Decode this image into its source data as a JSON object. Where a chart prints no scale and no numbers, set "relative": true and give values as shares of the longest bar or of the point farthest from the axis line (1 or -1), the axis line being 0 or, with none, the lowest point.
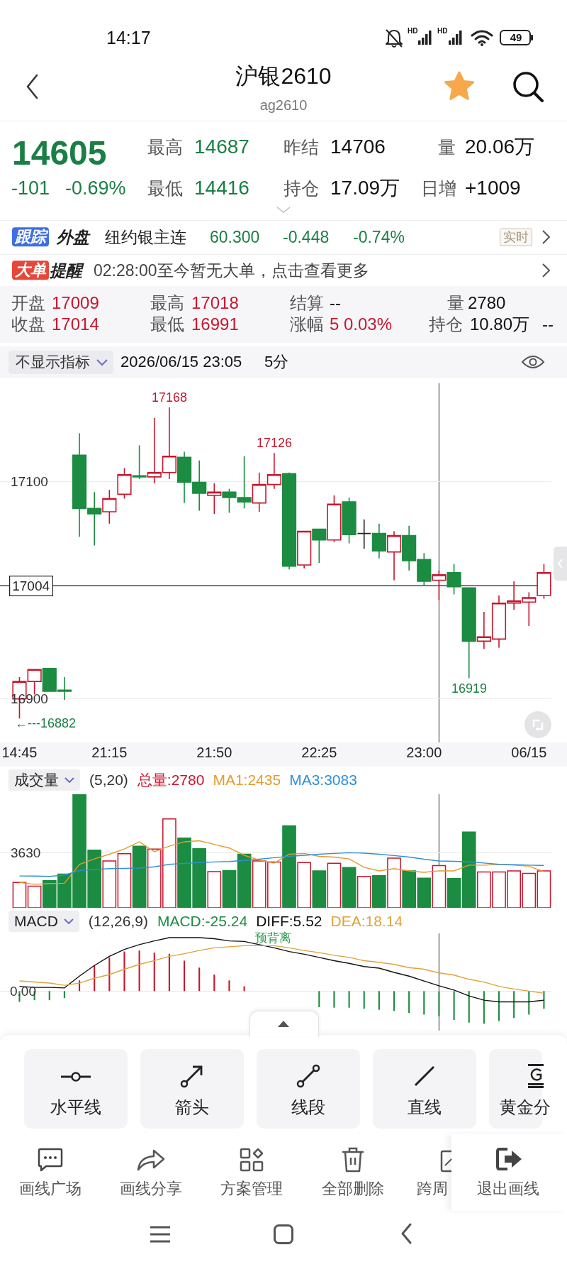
{
  "chart_data": [
    {
      "type": "other",
      "annotations": [
        "14:17",
        "HD",
        "HD",
        "49",
        "沪银2610",
        "ag2610",
        "14605",
        "-101",
        "-0.69%",
        "最高",
        "14687",
        "最低",
        "14416",
        "昨结",
        "14706",
        "持仓",
        "17.09万",
        "量",
        "20.06万",
        "日增",
        "+1009",
        "跟踪",
        "外盘",
        "纽约银主连",
        "60.300",
        "-0.448",
        "-0.74%",
        "实时",
        "大单",
        "提醒",
        "02:28:00至今暂无大单，点击查看更多",
        "开盘",
        "17009",
        "最高",
        "17018",
        "结算",
        "--",
        "量",
        "2780",
        "收盘",
        "17014",
        "最低",
        "16991",
        "涨幅",
        "5",
        "0.03%",
        "持仓",
        "10.80万",
        "--",
        "不显示指标",
        "2026/06/15 23:05",
        "5分"
      ]
    },
    {
      "type": "candlestick",
      "categories": [
        "14:45",
        null,
        null,
        null,
        null,
        null,
        "21:15",
        null,
        null,
        null,
        null,
        null,
        null,
        "21:50",
        null,
        null,
        null,
        null,
        null,
        null,
        "22:25",
        null,
        null,
        null,
        null,
        null,
        null,
        "23:00",
        null,
        null,
        null,
        null,
        null,
        null,
        "06/15",
        null
      ],
      "ohlc": [
        [
          16900,
          16920,
          16882,
          16916
        ],
        [
          16916,
          16927,
          16904,
          16927
        ],
        [
          16928,
          16928,
          16907,
          16907
        ],
        [
          16908,
          16920,
          16899,
          16907
        ],
        [
          17124,
          17144,
          17049,
          17075
        ],
        [
          17075,
          17090,
          17041,
          17070
        ],
        [
          17072,
          17092,
          17061,
          17084
        ],
        [
          17088,
          17112,
          17084,
          17106
        ],
        [
          17105,
          17133,
          17102,
          17104
        ],
        [
          17104,
          17158,
          17098,
          17108
        ],
        [
          17108,
          17168,
          17102,
          17123
        ],
        [
          17122,
          17127,
          17080,
          17099
        ],
        [
          17099,
          17119,
          17073,
          17089
        ],
        [
          17087,
          17098,
          17070,
          17090
        ],
        [
          17090,
          17093,
          17071,
          17085
        ],
        [
          17085,
          17123,
          17075,
          17081
        ],
        [
          17080,
          17108,
          17072,
          17097
        ],
        [
          17097,
          17126,
          17093,
          17106
        ],
        [
          17107,
          17108,
          17019,
          17022
        ],
        [
          17023,
          17054,
          17020,
          17054
        ],
        [
          17056,
          17056,
          17025,
          17046
        ],
        [
          17046,
          17087,
          17044,
          17079
        ],
        [
          17081,
          17085,
          17043,
          17051
        ],
        [
          17052,
          17065,
          17038,
          17052
        ],
        [
          17052,
          17061,
          17029,
          17036
        ],
        [
          17035,
          17054,
          17009,
          17050
        ],
        [
          17050,
          17059,
          17018,
          17027
        ],
        [
          17028,
          17034,
          17004,
          17008
        ],
        [
          17009,
          17018,
          16991,
          17014
        ],
        [
          17016,
          17024,
          16996,
          17003
        ],
        [
          17002,
          17002,
          16919,
          16953
        ],
        [
          16953,
          16980,
          16946,
          16957
        ],
        [
          16955,
          16995,
          16947,
          16988
        ],
        [
          16988,
          17008,
          16982,
          16990
        ],
        [
          16989,
          16998,
          16967,
          16993
        ],
        [
          16995,
          17024,
          16992,
          17016
        ]
      ],
      "colors": [
        "#c8162e",
        "#c8162e",
        "#1b8c41",
        "#1b8c41",
        "#1b8c41",
        "#1b8c41",
        "#c8162e",
        "#c8162e",
        "#1b8c41",
        "#c8162e",
        "#c8162e",
        "#1b8c41",
        "#1b8c41",
        "#c8162e",
        "#1b8c41",
        "#1b8c41",
        "#c8162e",
        "#c8162e",
        "#1b8c41",
        "#c8162e",
        "#1b8c41",
        "#c8162e",
        "#1b8c41",
        "#222222",
        "#1b8c41",
        "#c8162e",
        "#1b8c41",
        "#1b8c41",
        "#c8162e",
        "#1b8c41",
        "#1b8c41",
        "#c8162e",
        "#c8162e",
        "#c8162e",
        "#c8162e",
        "#c8162e"
      ],
      "ylim": [
        16860,
        17190
      ],
      "yticks": [
        16900,
        17100
      ],
      "grid": "y",
      "ref_lines": [
        {
          "axis": "y",
          "value": 17004,
          "label": "17004"
        }
      ],
      "annotations": [
        {
          "text": "17168",
          "y": 17168
        },
        {
          "text": "17126",
          "y": 17126
        },
        {
          "text": "16919",
          "y": 16919
        },
        "←---16882"
      ]
    },
    {
      "type": "bar",
      "title": "成交量",
      "subtitle": "(5,20)",
      "categories": [
        null,
        null,
        null,
        null,
        null,
        null,
        null,
        null,
        null,
        null,
        null,
        null,
        null,
        null,
        null,
        null,
        null,
        null,
        null,
        null,
        null,
        null,
        null,
        null,
        null,
        null,
        null,
        null,
        null,
        null,
        null,
        null,
        null,
        null,
        null,
        null
      ],
      "series": [
        {
          "name": "总量:2780",
          "color": "#c8162e",
          "colors": [
            "#c8162e",
            "#c8162e",
            "#1b8c41",
            "#1b8c41",
            "#1b8c41",
            "#1b8c41",
            "#c8162e",
            "#c8162e",
            "#1b8c41",
            "#c8162e",
            "#c8162e",
            "#1b8c41",
            "#1b8c41",
            "#c8162e",
            "#1b8c41",
            "#1b8c41",
            "#c8162e",
            "#c8162e",
            "#1b8c41",
            "#c8162e",
            "#1b8c41",
            "#c8162e",
            "#1b8c41",
            "#c8162e",
            "#1b8c41",
            "#c8162e",
            "#1b8c41",
            "#1b8c41",
            "#c8162e",
            "#1b8c41",
            "#1b8c41",
            "#c8162e",
            "#c8162e",
            "#c8162e",
            "#c8162e",
            "#c8162e"
          ],
          "values": [
            1670,
            1430,
            1790,
            2220,
            7480,
            3800,
            3080,
            3560,
            4060,
            3870,
            5860,
            4590,
            3890,
            2380,
            2460,
            3530,
            3080,
            3010,
            5400,
            2980,
            2430,
            2930,
            2650,
            2070,
            2120,
            3270,
            2430,
            1950,
            2780,
            1930,
            4990,
            2360,
            2360,
            2430,
            2270,
            2430
          ]
        },
        {
          "name": "MA1:2435",
          "type": "line",
          "color": "#e39b2d",
          "values": [
            1670,
            1550,
            1600,
            1620,
            2860,
            3220,
            3530,
            3870,
            4350,
            3700,
            4060,
            4350,
            4420,
            4180,
            3940,
            3460,
            3150,
            2940,
            3530,
            3580,
            3390,
            3340,
            3220,
            2670,
            2430,
            2580,
            2430,
            2340,
            2435,
            2430,
            2810,
            2810,
            2860,
            2810,
            2740,
            2380
          ]
        },
        {
          "name": "MA3:3083",
          "type": "line",
          "color": "#2f8fd6",
          "values": [
            2100,
            2090,
            2070,
            2150,
            2460,
            2520,
            2580,
            2600,
            2620,
            2700,
            2860,
            2930,
            2980,
            3020,
            3050,
            3120,
            3200,
            3300,
            3390,
            3460,
            3530,
            3580,
            3630,
            3600,
            3530,
            3440,
            3340,
            3200,
            3083,
            3060,
            3030,
            2950,
            2860,
            2840,
            2810,
            2790
          ]
        }
      ],
      "ylim": [
        0,
        7480
      ],
      "yticks": [
        3630
      ],
      "tick_labels": "y",
      "legend": "top left",
      "marker": "none",
      "ref_lines": [
        {
          "axis": "y",
          "value": 3630,
          "color": "#ebebeb"
        }
      ]
    },
    {
      "type": "bar",
      "title": "MACD",
      "subtitle": "(12,26,9)",
      "relative": true,
      "categories": [
        null,
        null,
        null,
        null,
        null,
        null,
        null,
        null,
        null,
        null,
        null,
        null,
        null,
        null,
        null,
        null,
        null,
        null,
        null,
        null,
        null,
        null,
        null,
        null,
        null,
        null,
        null,
        null,
        null,
        null,
        null,
        null,
        null,
        null,
        null,
        null
      ],
      "series": [
        {
          "name": "MACD:-25.24",
          "color": "#1b8c41",
          "colors": [
            "#1b8c41",
            "#1b8c41",
            "#1b8c41",
            "#1b8c41",
            "#c8162e",
            "#c8162e",
            "#c8162e",
            "#c8162e",
            "#c8162e",
            "#c8162e",
            "#c8162e",
            "#c8162e",
            "#c8162e",
            "#c8162e",
            "#c8162e",
            "#c8162e",
            "#c8162e",
            "#1b8c41",
            "#1b8c41",
            "#1b8c41",
            "#1b8c41",
            "#1b8c41",
            "#1b8c41",
            "#1b8c41",
            "#1b8c41",
            "#1b8c41",
            "#1b8c41",
            "#1b8c41",
            "#1b8c41",
            "#1b8c41",
            "#1b8c41",
            "#1b8c41",
            "#1b8c41",
            "#1b8c41",
            "#1b8c41",
            "#1b8c41"
          ],
          "values": [
            -0.2,
            -0.17,
            -0.17,
            -0.13,
            0.2,
            0.48,
            0.63,
            0.74,
            0.76,
            0.72,
            0.7,
            0.57,
            0.44,
            0.31,
            0.2,
            0.09,
            null,
            null,
            null,
            null,
            -0.3,
            -0.31,
            -0.31,
            -0.33,
            -0.35,
            -0.37,
            -0.41,
            -0.44,
            -0.47,
            -0.54,
            -0.59,
            -0.61,
            -0.56,
            -0.5,
            -0.44,
            -0.33
          ]
        },
        {
          "name": "DIFF:5.52",
          "type": "line",
          "color": "#111111",
          "values": [
            0.09,
            0.07,
            0.07,
            0.06,
            0.28,
            0.48,
            0.65,
            0.78,
            0.87,
            0.94,
            1,
            1,
            1,
            0.98,
            0.94,
            0.93,
            0.87,
            0.81,
            0.74,
            0.69,
            0.63,
            0.57,
            0.52,
            0.46,
            0.43,
            0.35,
            0.28,
            0.19,
            0.1,
            0.02,
            -0.09,
            -0.17,
            -0.2,
            -0.2,
            -0.2,
            -0.17
          ]
        },
        {
          "name": "DEA:18.14",
          "type": "line",
          "color": "#e0a23a",
          "values": [
            0.19,
            0.17,
            0.15,
            0.11,
            0.15,
            0.24,
            0.31,
            0.41,
            0.5,
            0.57,
            0.65,
            0.7,
            0.76,
            0.81,
            0.83,
            0.85,
            0.85,
            0.85,
            0.81,
            0.76,
            0.72,
            0.67,
            0.63,
            0.57,
            0.54,
            0.5,
            0.44,
            0.41,
            0.34,
            0.3,
            0.22,
            0.17,
            0.09,
            0.04,
            0,
            -0.04
          ]
        }
      ],
      "tick_labels": false,
      "legend": "top left",
      "marker": "none",
      "annotations": [
        "预背离",
        "0.00"
      ]
    },
    {
      "type": "other",
      "annotations": [
        "水平线",
        "箭头",
        "线段",
        "直线",
        "黄金分",
        "画线广场",
        "画线分享",
        "方案管理",
        "全部删除",
        "跨周",
        "退出画线"
      ]
    }
  ]
}
